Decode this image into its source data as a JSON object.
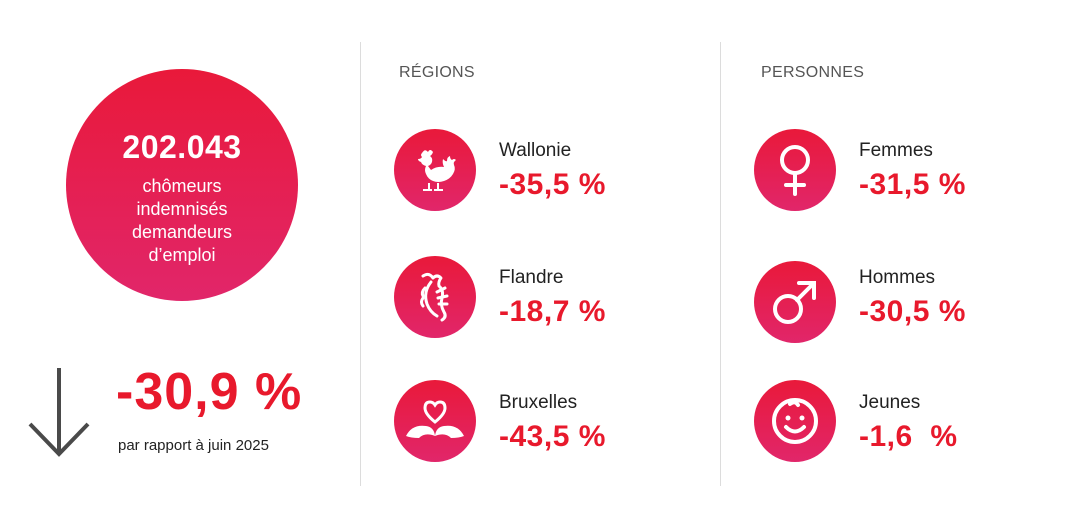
{
  "summary": {
    "total_number": "202.043",
    "total_caption": "chômeurs\nindemnisés\ndemandeurs\nd’emploi",
    "total_change": "-30,9 %",
    "comparison": "par rapport à juin 2025"
  },
  "regions": {
    "title": "RÉGIONS",
    "items": [
      {
        "label": "Wallonie",
        "value": "-35,5 %",
        "icon": "rooster-icon"
      },
      {
        "label": "Flandre",
        "value": "-18,7 %",
        "icon": "lion-icon"
      },
      {
        "label": "Bruxelles",
        "value": "-43,5 %",
        "icon": "iris-heart-icon"
      }
    ]
  },
  "persons": {
    "title": "PERSONNES",
    "items": [
      {
        "label": "Femmes",
        "value": "-31,5 %",
        "icon": "female-symbol-icon"
      },
      {
        "label": "Hommes",
        "value": "-30,5 %",
        "icon": "male-symbol-icon"
      },
      {
        "label": "Jeunes",
        "value": "-1,6  %",
        "icon": "baby-face-icon"
      }
    ]
  },
  "colors": {
    "accent": "#e8192c",
    "gradient_top": "#e9193a",
    "gradient_bottom": "#e1266a",
    "arrow": "#4a4a4a"
  }
}
